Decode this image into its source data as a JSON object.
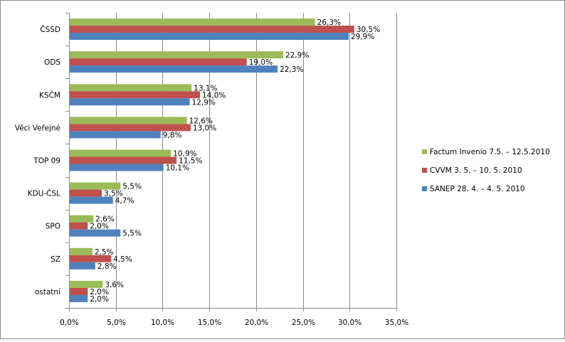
{
  "chart_data": {
    "type": "bar",
    "orientation": "horizontal",
    "categories": [
      "ČSSD",
      "ODS",
      "KSČM",
      "Věci Veřejné",
      "TOP 09",
      "KDU-ČSL",
      "SPO",
      "SZ",
      "ostatní"
    ],
    "series": [
      {
        "name": "Factum Invenio 7.5. – 12.5.2010",
        "color": "#9bbb59",
        "values": [
          26.3,
          22.9,
          13.1,
          12.6,
          10.9,
          5.5,
          2.6,
          2.5,
          3.6
        ],
        "labels": [
          "26,3%",
          "22,9%",
          "13,1%",
          "12,6%",
          "10,9%",
          "5,5%",
          "2,6%",
          "2,5%",
          "3,6%"
        ]
      },
      {
        "name": "CVVM 3. 5. – 10. 5. 2010",
        "color": "#c0504d",
        "values": [
          30.5,
          19.0,
          14.0,
          13.0,
          11.5,
          3.5,
          2.0,
          4.5,
          2.0
        ],
        "labels": [
          "30,5%",
          "19,0%",
          "14,0%",
          "13,0%",
          "11,5%",
          "3,5%",
          "2,0%",
          "4,5%",
          "2,0%"
        ]
      },
      {
        "name": "SANEP 28. 4. – 4. 5. 2010",
        "color": "#4f81bd",
        "values": [
          29.9,
          22.3,
          12.9,
          9.8,
          10.1,
          4.7,
          5.5,
          2.8,
          2.0
        ],
        "labels": [
          "29,9%",
          "22,3%",
          "12,9%",
          "9,8%",
          "10,1%",
          "4,7%",
          "5,5%",
          "2,8%",
          "2,0%"
        ]
      }
    ],
    "xlim": [
      0,
      35
    ],
    "x_ticks": [
      0,
      5,
      10,
      15,
      20,
      25,
      30,
      35
    ],
    "x_tick_labels": [
      "0,0%",
      "5,0%",
      "10,0%",
      "15,0%",
      "20,0%",
      "25,0%",
      "30,0%",
      "35,0%"
    ],
    "legend_position": "right",
    "grid": "vertical",
    "legend_order": [
      0,
      1,
      2
    ]
  }
}
